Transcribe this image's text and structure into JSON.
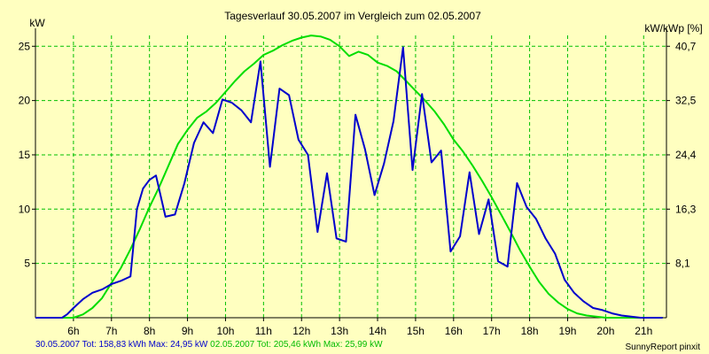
{
  "chart_data": {
    "type": "line",
    "title": "Tagesverlauf 30.05.2007 im Vergleich zum 02.05.2007",
    "ylabel_left": "kW",
    "ylabel_right": "kW/kWp [%]",
    "xlim": [
      5.0,
      21.6
    ],
    "ylim": [
      0,
      26
    ],
    "grid": true,
    "x_ticks": [
      6,
      7,
      8,
      9,
      10,
      11,
      12,
      13,
      14,
      15,
      16,
      17,
      18,
      19,
      20,
      21
    ],
    "x_tick_labels": [
      "6h",
      "7h",
      "8h",
      "9h",
      "10h",
      "11h",
      "12h",
      "13h",
      "14h",
      "15h",
      "16h",
      "17h",
      "18h",
      "19h",
      "20h",
      "21h"
    ],
    "y_left_ticks": [
      5,
      10,
      15,
      20,
      25
    ],
    "y_left_labels": [
      "5",
      "10",
      "15",
      "20",
      "25"
    ],
    "y_right_ticks": [
      5,
      10,
      15,
      20,
      25
    ],
    "y_right_labels": [
      "8,1",
      "16,3",
      "24,4",
      "32,5",
      "40,7"
    ],
    "series": [
      {
        "name": "30.05.2007",
        "color": "#0000CC",
        "points": [
          [
            5.0,
            0
          ],
          [
            5.7,
            0
          ],
          [
            5.83,
            0.3
          ],
          [
            6.0,
            0.9
          ],
          [
            6.25,
            1.7
          ],
          [
            6.5,
            2.3
          ],
          [
            6.75,
            2.6
          ],
          [
            7.0,
            3.1
          ],
          [
            7.25,
            3.4
          ],
          [
            7.5,
            3.8
          ],
          [
            7.67,
            10.0
          ],
          [
            7.83,
            11.9
          ],
          [
            8.0,
            12.7
          ],
          [
            8.17,
            13.1
          ],
          [
            8.42,
            9.3
          ],
          [
            8.67,
            9.5
          ],
          [
            8.92,
            12.4
          ],
          [
            9.17,
            16.1
          ],
          [
            9.42,
            18.0
          ],
          [
            9.67,
            17.0
          ],
          [
            9.92,
            20.1
          ],
          [
            10.17,
            19.8
          ],
          [
            10.42,
            19.1
          ],
          [
            10.67,
            18.0
          ],
          [
            10.92,
            23.6
          ],
          [
            11.17,
            13.9
          ],
          [
            11.42,
            21.1
          ],
          [
            11.67,
            20.5
          ],
          [
            11.92,
            16.4
          ],
          [
            12.17,
            15.0
          ],
          [
            12.42,
            7.9
          ],
          [
            12.67,
            13.3
          ],
          [
            12.92,
            7.3
          ],
          [
            13.17,
            7.0
          ],
          [
            13.42,
            18.7
          ],
          [
            13.67,
            15.5
          ],
          [
            13.92,
            11.3
          ],
          [
            14.17,
            14.2
          ],
          [
            14.42,
            18.1
          ],
          [
            14.67,
            24.9
          ],
          [
            14.92,
            13.6
          ],
          [
            15.17,
            20.6
          ],
          [
            15.42,
            14.3
          ],
          [
            15.67,
            15.4
          ],
          [
            15.92,
            6.1
          ],
          [
            16.17,
            7.5
          ],
          [
            16.42,
            13.4
          ],
          [
            16.67,
            7.7
          ],
          [
            16.92,
            10.9
          ],
          [
            17.17,
            5.2
          ],
          [
            17.42,
            4.7
          ],
          [
            17.67,
            12.4
          ],
          [
            17.92,
            10.2
          ],
          [
            18.17,
            9.1
          ],
          [
            18.42,
            7.3
          ],
          [
            18.67,
            5.9
          ],
          [
            18.92,
            3.5
          ],
          [
            19.17,
            2.3
          ],
          [
            19.42,
            1.5
          ],
          [
            19.67,
            0.9
          ],
          [
            19.92,
            0.7
          ],
          [
            20.17,
            0.4
          ],
          [
            20.42,
            0.2
          ],
          [
            20.67,
            0.1
          ],
          [
            20.92,
            0
          ],
          [
            21.5,
            0
          ]
        ]
      },
      {
        "name": "02.05.2007",
        "color": "#00DD00",
        "points": [
          [
            5.0,
            0
          ],
          [
            6.0,
            0
          ],
          [
            6.25,
            0.3
          ],
          [
            6.5,
            0.9
          ],
          [
            6.75,
            1.8
          ],
          [
            7.0,
            3.2
          ],
          [
            7.25,
            4.6
          ],
          [
            7.5,
            6.3
          ],
          [
            7.75,
            8.2
          ],
          [
            8.0,
            10.2
          ],
          [
            8.25,
            12.0
          ],
          [
            8.5,
            14.0
          ],
          [
            8.75,
            16.0
          ],
          [
            9.0,
            17.3
          ],
          [
            9.25,
            18.4
          ],
          [
            9.5,
            19.0
          ],
          [
            9.75,
            19.8
          ],
          [
            10.0,
            20.8
          ],
          [
            10.25,
            21.8
          ],
          [
            10.5,
            22.7
          ],
          [
            10.75,
            23.4
          ],
          [
            11.0,
            24.2
          ],
          [
            11.25,
            24.6
          ],
          [
            11.5,
            25.1
          ],
          [
            11.75,
            25.5
          ],
          [
            12.0,
            25.8
          ],
          [
            12.25,
            25.99
          ],
          [
            12.5,
            25.9
          ],
          [
            12.75,
            25.6
          ],
          [
            13.0,
            25.0
          ],
          [
            13.25,
            24.1
          ],
          [
            13.5,
            24.5
          ],
          [
            13.75,
            24.2
          ],
          [
            14.0,
            23.5
          ],
          [
            14.25,
            23.2
          ],
          [
            14.5,
            22.7
          ],
          [
            14.75,
            21.8
          ],
          [
            15.0,
            20.9
          ],
          [
            15.25,
            20.0
          ],
          [
            15.5,
            19.0
          ],
          [
            15.75,
            17.8
          ],
          [
            16.0,
            16.4
          ],
          [
            16.25,
            15.3
          ],
          [
            16.5,
            14.0
          ],
          [
            16.75,
            12.6
          ],
          [
            17.0,
            11.1
          ],
          [
            17.25,
            9.5
          ],
          [
            17.5,
            7.9
          ],
          [
            17.75,
            6.2
          ],
          [
            18.0,
            4.7
          ],
          [
            18.25,
            3.3
          ],
          [
            18.5,
            2.2
          ],
          [
            18.75,
            1.4
          ],
          [
            19.0,
            0.8
          ],
          [
            19.25,
            0.4
          ],
          [
            19.5,
            0.2
          ],
          [
            19.75,
            0.1
          ],
          [
            20.0,
            0
          ],
          [
            21.5,
            0
          ]
        ]
      }
    ]
  },
  "footer": {
    "left": "30.05.2007 Tot: 158,83 kWh Max: 24,95 kW",
    "right_part": " 02.05.2007 Tot: 205,46 kWh Max: 25,99 kW",
    "credit": "SunnyReport pinxit"
  },
  "colors": {
    "background": "#FFFFC0",
    "grid": "#00C000",
    "series1": "#0000CC",
    "series2": "#00DD00"
  }
}
